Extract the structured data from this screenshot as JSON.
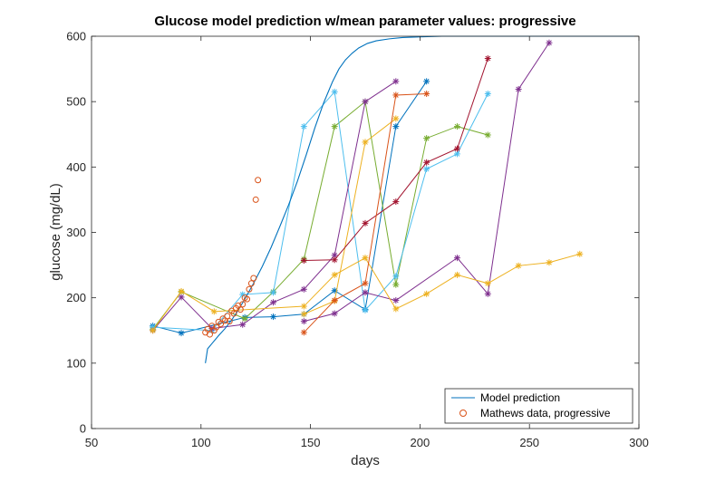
{
  "chart_data": {
    "type": "line",
    "title": "Glucose model prediction w/mean parameter values: progressive",
    "xlabel": "days",
    "ylabel": "glucose (mg/dL)",
    "xlim": [
      50,
      300
    ],
    "ylim": [
      0,
      600
    ],
    "xticks": [
      50,
      100,
      150,
      200,
      250,
      300
    ],
    "yticks": [
      0,
      100,
      200,
      300,
      400,
      500,
      600
    ],
    "grid": false,
    "legend_position": "bottom-right",
    "legend": [
      {
        "label": "Model prediction",
        "color": "#0072BD",
        "kind": "line"
      },
      {
        "label": "Mathews data, progressive",
        "color": "#D95319",
        "kind": "circle"
      }
    ],
    "model_prediction": {
      "color": "#0072BD",
      "x": [
        102,
        103,
        105,
        108,
        111,
        114,
        117,
        120,
        124,
        128,
        132,
        136,
        140,
        144,
        148,
        152,
        156,
        160,
        163,
        166,
        169,
        172,
        176,
        180,
        186,
        192,
        200,
        210,
        225,
        245,
        270,
        300
      ],
      "y": [
        100,
        122,
        130,
        142,
        153,
        166,
        181,
        198,
        222,
        248,
        277,
        309,
        342,
        378,
        418,
        460,
        498,
        530,
        550,
        564,
        574,
        582,
        589,
        593,
        596,
        598,
        599,
        600,
        600,
        600,
        600,
        600
      ]
    },
    "mathews_data": {
      "color": "#D95319",
      "x": [
        102,
        103,
        104,
        105,
        106,
        107,
        108,
        109,
        110,
        111,
        112,
        113,
        114,
        115,
        116,
        117,
        118,
        119,
        120,
        121,
        122,
        123,
        124,
        125,
        126
      ],
      "y": [
        147,
        152,
        144,
        157,
        150,
        155,
        163,
        160,
        168,
        165,
        172,
        164,
        180,
        176,
        184,
        188,
        182,
        190,
        200,
        198,
        213,
        222,
        230,
        350,
        380
      ]
    },
    "series": [
      {
        "color": "#0072BD",
        "x": [
          78,
          91,
          120,
          133,
          147,
          161,
          175,
          189,
          203
        ],
        "y": [
          157,
          146,
          170,
          171,
          175,
          211,
          182,
          462,
          531
        ]
      },
      {
        "color": "#77AC30",
        "x": [
          78,
          91,
          120,
          133,
          147,
          161,
          175,
          189,
          203,
          217,
          231
        ],
        "y": [
          152,
          209,
          168,
          209,
          259,
          462,
          500,
          220,
          444,
          462,
          449
        ]
      },
      {
        "color": "#4DBEEE",
        "x": [
          78,
          105,
          119,
          133,
          147,
          161,
          175,
          189,
          203,
          217,
          231
        ],
        "y": [
          155,
          150,
          205,
          208,
          462,
          515,
          181,
          233,
          397,
          420,
          512
        ]
      },
      {
        "color": "#7E2F8E",
        "x": [
          78,
          91,
          105,
          119,
          133,
          147,
          161,
          175,
          189
        ],
        "y": [
          150,
          201,
          153,
          159,
          193,
          213,
          265,
          500,
          531
        ]
      },
      {
        "color": "#7E2F8E",
        "x": [
          147,
          161,
          175,
          189,
          217,
          231,
          245,
          259
        ],
        "y": [
          164,
          176,
          208,
          196,
          261,
          206,
          519,
          590
        ]
      },
      {
        "color": "#EDB120",
        "x": [
          78,
          91,
          106,
          147,
          161,
          175,
          189,
          203,
          217,
          231,
          245,
          259,
          273
        ],
        "y": [
          150,
          210,
          179,
          187,
          235,
          261,
          183,
          206,
          235,
          222,
          249,
          254,
          267
        ]
      },
      {
        "color": "#EDB120",
        "x": [
          147,
          161,
          175,
          189
        ],
        "y": [
          175,
          195,
          438,
          474
        ]
      },
      {
        "color": "#A2142F",
        "x": [
          147,
          161,
          175,
          189,
          203,
          217,
          231
        ],
        "y": [
          257,
          258,
          314,
          347,
          407,
          428,
          566
        ]
      },
      {
        "color": "#D95319",
        "x": [
          147,
          161,
          175,
          189,
          203
        ],
        "y": [
          147,
          196,
          222,
          510,
          512
        ]
      }
    ]
  }
}
